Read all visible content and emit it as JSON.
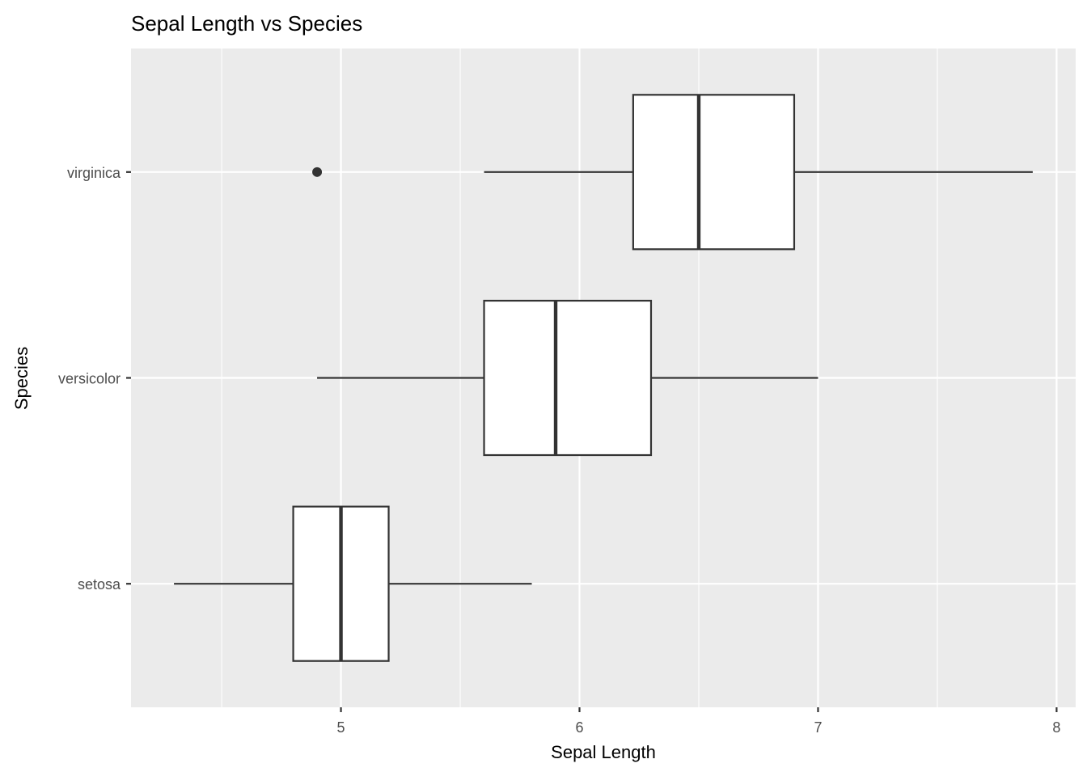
{
  "chart_data": {
    "type": "boxplot",
    "orientation": "horizontal",
    "title": "Sepal Length vs Species",
    "xlabel": "Sepal Length",
    "ylabel": "Species",
    "xlim": [
      4.12,
      8.08
    ],
    "x_ticks": [
      5,
      6,
      7,
      8
    ],
    "x_minor_ticks": [
      4.5,
      5.5,
      6.5,
      7.5
    ],
    "categories": [
      "setosa",
      "versicolor",
      "virginica"
    ],
    "boxes": [
      {
        "category": "setosa",
        "whisker_low": 4.3,
        "q1": 4.8,
        "median": 5.0,
        "q3": 5.2,
        "whisker_high": 5.8,
        "outliers": []
      },
      {
        "category": "versicolor",
        "whisker_low": 4.9,
        "q1": 5.6,
        "median": 5.9,
        "q3": 6.3,
        "whisker_high": 7.0,
        "outliers": []
      },
      {
        "category": "virginica",
        "whisker_low": 5.6,
        "q1": 6.225,
        "median": 6.5,
        "q3": 6.9,
        "whisker_high": 7.9,
        "outliers": [
          4.9
        ]
      }
    ],
    "grid": true,
    "colors": {
      "panel": "#ebebeb",
      "grid": "#ffffff",
      "box_fill": "#ffffff",
      "box_stroke": "#333333",
      "tick_text": "#4d4d4d"
    }
  }
}
